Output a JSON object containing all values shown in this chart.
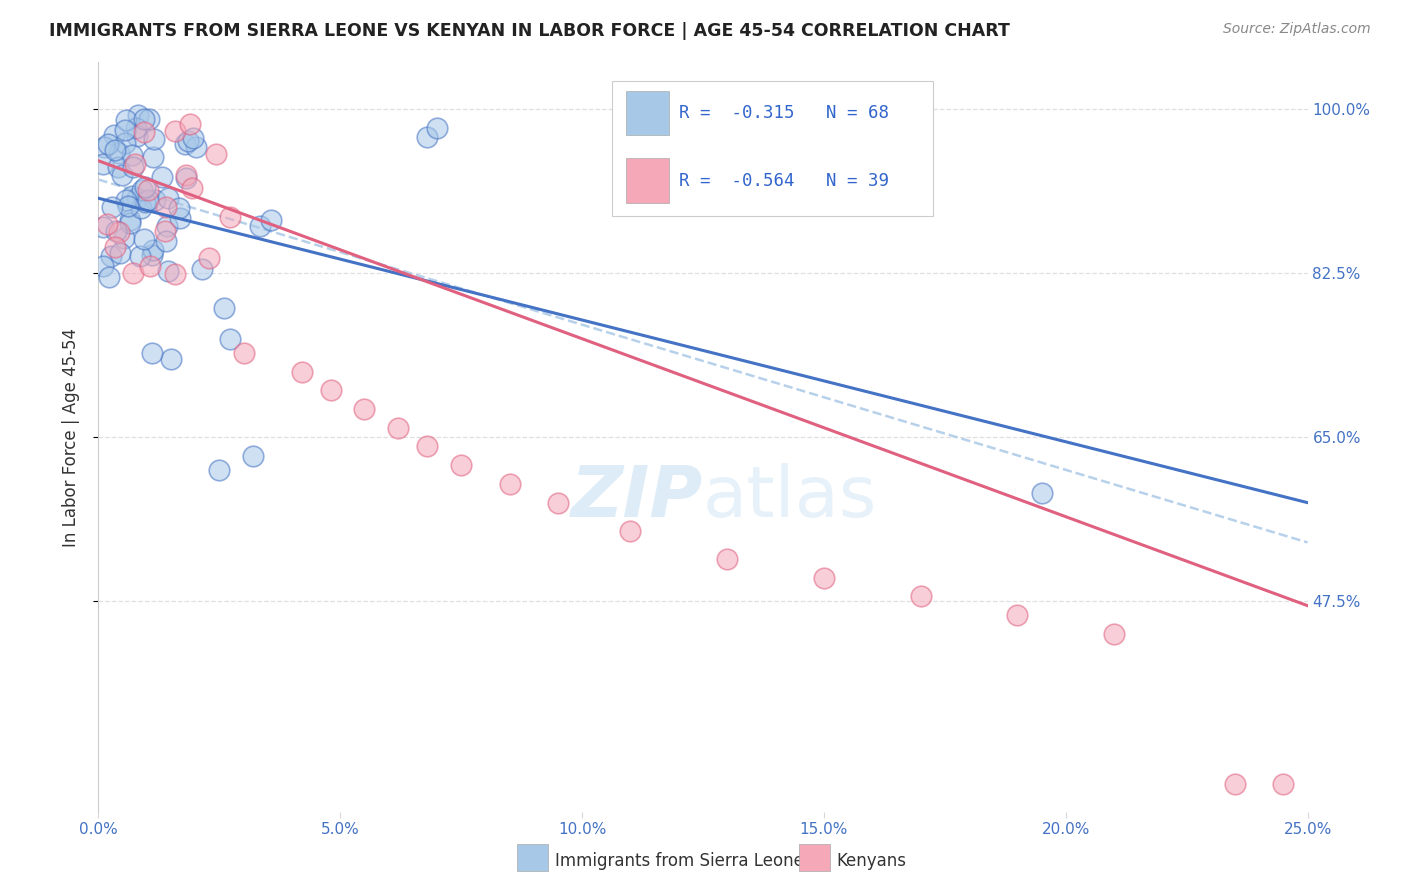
{
  "title": "IMMIGRANTS FROM SIERRA LEONE VS KENYAN IN LABOR FORCE | AGE 45-54 CORRELATION CHART",
  "source": "Source: ZipAtlas.com",
  "ylabel": "In Labor Force | Age 45-54",
  "legend_label1": "Immigrants from Sierra Leone",
  "legend_label2": "Kenyans",
  "r1": -0.315,
  "n1": 68,
  "r2": -0.564,
  "n2": 39,
  "color1": "#a8c8e8",
  "color2": "#f4a8b8",
  "line_color1": "#4472c4",
  "line_color2": "#e06080",
  "dashed_color": "#b0cce8",
  "xlim": [
    0.0,
    0.25
  ],
  "ylim": [
    0.25,
    1.05
  ],
  "ytick_positions": [
    0.475,
    0.65,
    0.825,
    1.0
  ],
  "ytick_labels": [
    "47.5%",
    "65.0%",
    "82.5%",
    "100.0%"
  ],
  "xtick_positions": [
    0.0,
    0.05,
    0.1,
    0.15,
    0.2,
    0.25
  ],
  "xtick_labels": [
    "0.0%",
    "5.0%",
    "10.0%",
    "15.0%",
    "20.0%",
    "25.0%"
  ],
  "sl_intercept": 0.905,
  "sl_slope": -1.3,
  "k_intercept": 0.945,
  "k_slope": -1.9,
  "dash_intercept": 0.925,
  "dash_slope": -1.55,
  "background_color": "#ffffff",
  "grid_color": "#d8d8d8",
  "axis_color": "#4472c4",
  "title_color": "#222222",
  "source_color": "#888888",
  "ylabel_color": "#333333",
  "watermark_color": "#d0e4f4",
  "legend_text_color": "#3366cc"
}
